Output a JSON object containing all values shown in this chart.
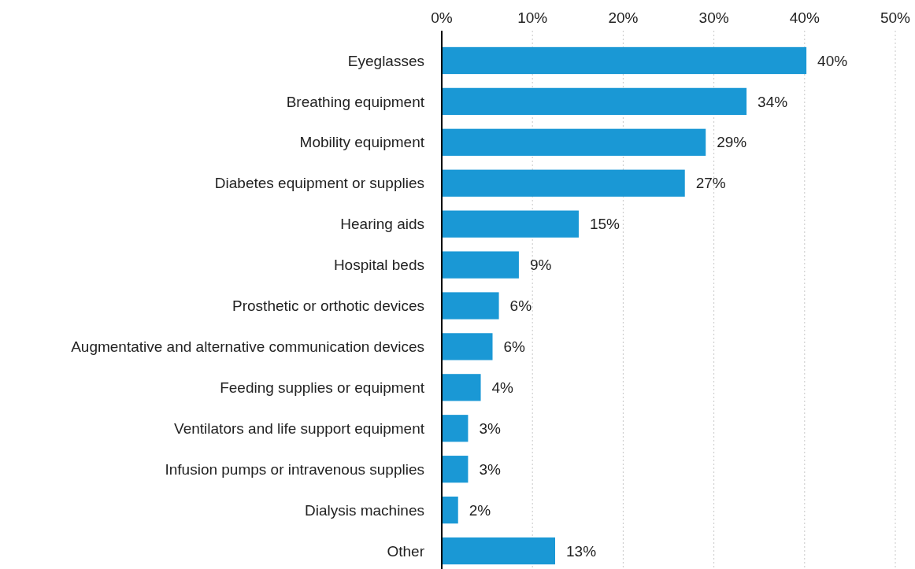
{
  "chart_data": {
    "type": "bar",
    "orientation": "horizontal",
    "categories": [
      "Eyeglasses",
      "Breathing equipment",
      "Mobility equipment",
      "Diabetes equipment or supplies",
      "Hearing aids",
      "Hospital beds",
      "Prosthetic or orthotic devices",
      "Augmentative and alternative communication devices",
      "Feeding supplies or equipment",
      "Ventilators and life support equipment",
      "Infusion pumps or intravenous supplies",
      "Dialysis machines",
      "Other"
    ],
    "values": [
      40.2,
      33.6,
      29.1,
      26.8,
      15.1,
      8.5,
      6.3,
      5.6,
      4.3,
      2.9,
      2.9,
      1.8,
      12.5
    ],
    "value_labels": [
      "40%",
      "34%",
      "29%",
      "27%",
      "15%",
      "9%",
      "6%",
      "6%",
      "4%",
      "3%",
      "3%",
      "2%",
      "13%"
    ],
    "color": "#1a98d5",
    "xlim": [
      0,
      50
    ],
    "xticks": [
      {
        "value": 0,
        "label": "0%"
      },
      {
        "value": 10,
        "label": "10%"
      },
      {
        "value": 20,
        "label": "20%"
      },
      {
        "value": 30,
        "label": "30%"
      },
      {
        "value": 40,
        "label": "40%"
      },
      {
        "value": 50,
        "label": "50%"
      }
    ],
    "grid": "x"
  }
}
